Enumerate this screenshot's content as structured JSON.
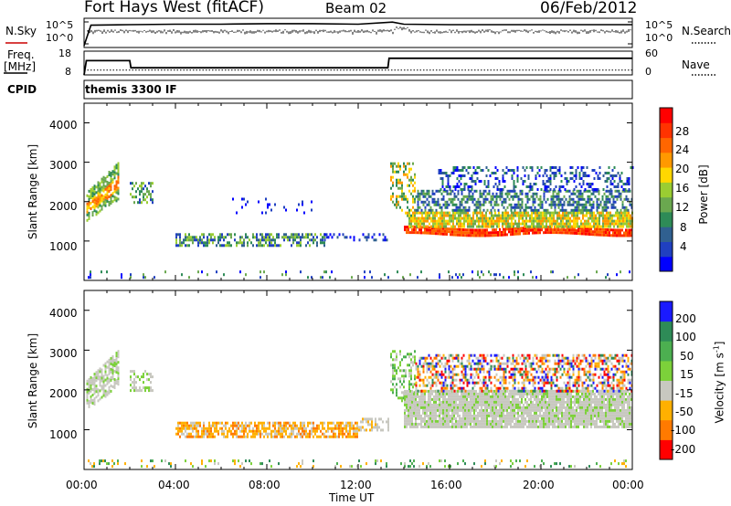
{
  "header": {
    "station": "Fort Hays West (fitACF)",
    "beam": "Beam 02",
    "date": "06/Feb/2012"
  },
  "top_panel": {
    "left_label": "N.Sky",
    "right_label": "N.Search",
    "left_ticks": [
      "10^5",
      "10^0"
    ],
    "right_ticks": [
      "10^5",
      "10^0"
    ]
  },
  "freq_panel": {
    "freq_label": "Freq.",
    "freq_unit": "[MHz]",
    "nave_label": "Nave",
    "cpid_label": "CPID",
    "left_ticks": [
      "18",
      "8"
    ],
    "right_ticks": [
      "60",
      "0"
    ],
    "cpid_text": "themis 3300 IF"
  },
  "power_colorbar": {
    "label": "Power [dB]",
    "ticks": [
      "28",
      "24",
      "20",
      "16",
      "12",
      "8",
      "4"
    ],
    "colors": [
      "#0000ff",
      "#2040c0",
      "#306090",
      "#2e8b57",
      "#6aa84f",
      "#9acd32",
      "#ffd700",
      "#ff9900",
      "#ff6600",
      "#ff3300",
      "#ff0000"
    ]
  },
  "velocity_colorbar": {
    "label_main": "Velocity [m s",
    "label_sup": "-1",
    "label_end": "]",
    "ticks": [
      "200",
      "100",
      "50",
      "15",
      "-15",
      "-50",
      "-100",
      "-200"
    ],
    "colors": [
      "#1a1aff",
      "#2e8b57",
      "#4caf50",
      "#7cd13a",
      "#c8c8c0",
      "#ffb000",
      "#ff7a00",
      "#ff0000"
    ]
  },
  "x_axis": {
    "label": "Time UT",
    "ticks": [
      "00:00",
      "04:00",
      "08:00",
      "12:00",
      "16:00",
      "20:00",
      "00:00"
    ]
  },
  "y_axis": {
    "label": "Slant Range [km]",
    "ticks": [
      "4000",
      "3000",
      "2000",
      "1000"
    ]
  },
  "chart_data": [
    {
      "type": "line",
      "title": "N.Sky / N.Search",
      "x_range_hours": [
        0,
        24
      ],
      "series": [
        {
          "name": "N.Sky",
          "x": [
            0,
            0.3,
            2,
            4,
            6,
            8,
            10,
            12,
            13.5,
            14,
            16,
            18,
            20,
            22,
            24
          ],
          "y": [
            0,
            4,
            4.1,
            4.2,
            4.2,
            4.3,
            4.3,
            4.2,
            4.6,
            4.2,
            4.1,
            4.1,
            4.1,
            4.1,
            4.1
          ]
        }
      ],
      "ylim": [
        0,
        5
      ],
      "scale": "log"
    },
    {
      "type": "line",
      "title": "Freq. / Nave",
      "x_range_hours": [
        0,
        24
      ],
      "series": [
        {
          "name": "Freq.",
          "x": [
            0,
            0.1,
            2,
            2.05,
            13.3,
            13.35,
            24
          ],
          "y": [
            8,
            14,
            14,
            11,
            11,
            15,
            15
          ]
        },
        {
          "name": "Nave",
          "x": [
            0,
            24
          ],
          "y": [
            12,
            12
          ]
        }
      ],
      "ylim_freq": [
        8,
        18
      ],
      "ylim_nave": [
        0,
        60
      ]
    },
    {
      "type": "heatmap",
      "title": "Power [dB]",
      "x_range_hours": [
        0,
        24
      ],
      "y_range_km": [
        0,
        4500
      ],
      "features": [
        {
          "x": [
            0.1,
            1.5
          ],
          "y": [
            1500,
            3000
          ],
          "power_dB": 24
        },
        {
          "x": [
            2.0,
            3.0
          ],
          "y": [
            2000,
            2500
          ],
          "power_dB": 16
        },
        {
          "x": [
            4.0,
            10.5
          ],
          "y": [
            900,
            1200
          ],
          "power_dB": 12
        },
        {
          "x": [
            13.5,
            14.5
          ],
          "y": [
            1500,
            3000
          ],
          "power_dB": 20
        },
        {
          "x": [
            14.0,
            24.0
          ],
          "y": [
            1200,
            1600
          ],
          "power_dB": 28
        },
        {
          "x": [
            14.5,
            24.0
          ],
          "y": [
            1600,
            2900
          ],
          "power_dB": 10
        }
      ]
    },
    {
      "type": "heatmap",
      "title": "Velocity [m s-1]",
      "x_range_hours": [
        0,
        24
      ],
      "y_range_km": [
        0,
        4500
      ],
      "features": [
        {
          "x": [
            0.1,
            1.5
          ],
          "y": [
            1500,
            3000
          ],
          "velocity": 0
        },
        {
          "x": [
            4.0,
            12.0
          ],
          "y": [
            850,
            1200
          ],
          "velocity": -50
        },
        {
          "x": [
            13.5,
            14.5
          ],
          "y": [
            1500,
            3000
          ],
          "velocity": 40
        },
        {
          "x": [
            14.0,
            24.0
          ],
          "y": [
            1100,
            2000
          ],
          "velocity": 0
        },
        {
          "x": [
            14.5,
            24.0
          ],
          "y": [
            2000,
            2900
          ],
          "velocity": 100
        }
      ]
    }
  ]
}
